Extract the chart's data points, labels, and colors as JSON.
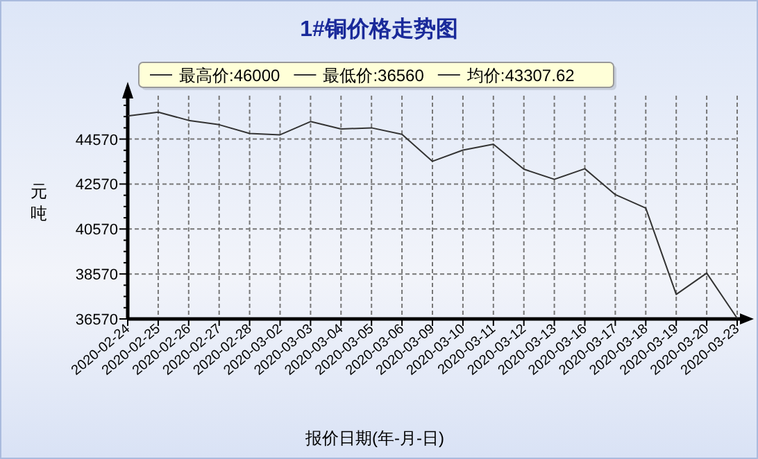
{
  "chart_data": {
    "type": "line",
    "title": "1#铜价格走势图",
    "xlabel": "报价日期(年-月-日)",
    "ylabel": "元吨",
    "annotations": [
      "最高价:46000",
      "最低价:36560",
      "均价:43307.62"
    ],
    "categories": [
      "2020-02-24",
      "2020-02-25",
      "2020-02-26",
      "2020-02-27",
      "2020-02-28",
      "2020-03-02",
      "2020-03-03",
      "2020-03-04",
      "2020-03-05",
      "2020-03-06",
      "2020-03-09",
      "2020-03-10",
      "2020-03-11",
      "2020-03-12",
      "2020-03-13",
      "2020-03-16",
      "2020-03-17",
      "2020-03-18",
      "2020-03-19",
      "2020-03-20",
      "2020-03-23"
    ],
    "series": [
      {
        "color": "#333333",
        "values": [
          45600,
          45770,
          45400,
          45210,
          44820,
          44760,
          45350,
          45020,
          45070,
          44780,
          43580,
          44080,
          44340,
          43230,
          42780,
          43250,
          42100,
          41500,
          37660,
          38610,
          36600
        ]
      }
    ],
    "ylim": [
      36570,
      46500
    ],
    "yticks": [
      36570,
      {
        "value": 37070,
        "label": null
      },
      {
        "value": 37570,
        "label": null
      },
      {
        "value": 38070,
        "label": null
      },
      38570,
      {
        "value": 39070,
        "label": null
      },
      {
        "value": 39570,
        "label": null
      },
      {
        "value": 40070,
        "label": null
      },
      40570,
      {
        "value": 41070,
        "label": null
      },
      {
        "value": 41570,
        "label": null
      },
      {
        "value": 42070,
        "label": null
      },
      42570,
      {
        "value": 43070,
        "label": null
      },
      {
        "value": 43570,
        "label": null
      },
      {
        "value": 44070,
        "label": null
      },
      44570,
      {
        "value": 45070,
        "label": null
      },
      {
        "value": 45570,
        "label": null
      },
      {
        "value": 46070,
        "label": null
      }
    ],
    "grid": true,
    "line_style": "solid",
    "marker": "none"
  }
}
